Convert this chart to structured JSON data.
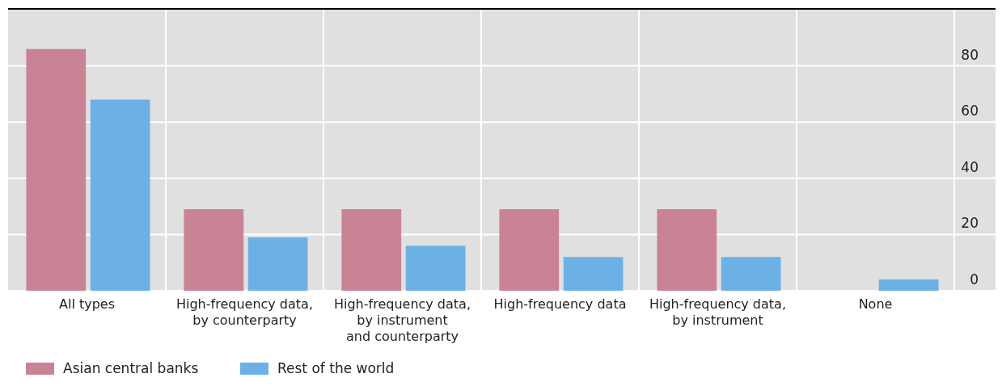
{
  "chart_data": {
    "type": "bar",
    "categories": [
      "All types",
      "High-frequency data, by counterparty",
      "High-frequency data, by instrument and counterparty",
      "High-frequency data",
      "High-frequency data, by instrument",
      "None"
    ],
    "series": [
      {
        "name": "Asian central banks",
        "color": "#c98394",
        "values": [
          86,
          29,
          29,
          29,
          29,
          0
        ]
      },
      {
        "name": "Rest of the world",
        "color": "#6cb1e6",
        "values": [
          68,
          19,
          16,
          12,
          12,
          4
        ]
      }
    ],
    "ylim": [
      0,
      100
    ],
    "yticks": [
      0,
      20,
      40,
      60,
      80
    ],
    "grid": true,
    "legend": "bottom left"
  }
}
